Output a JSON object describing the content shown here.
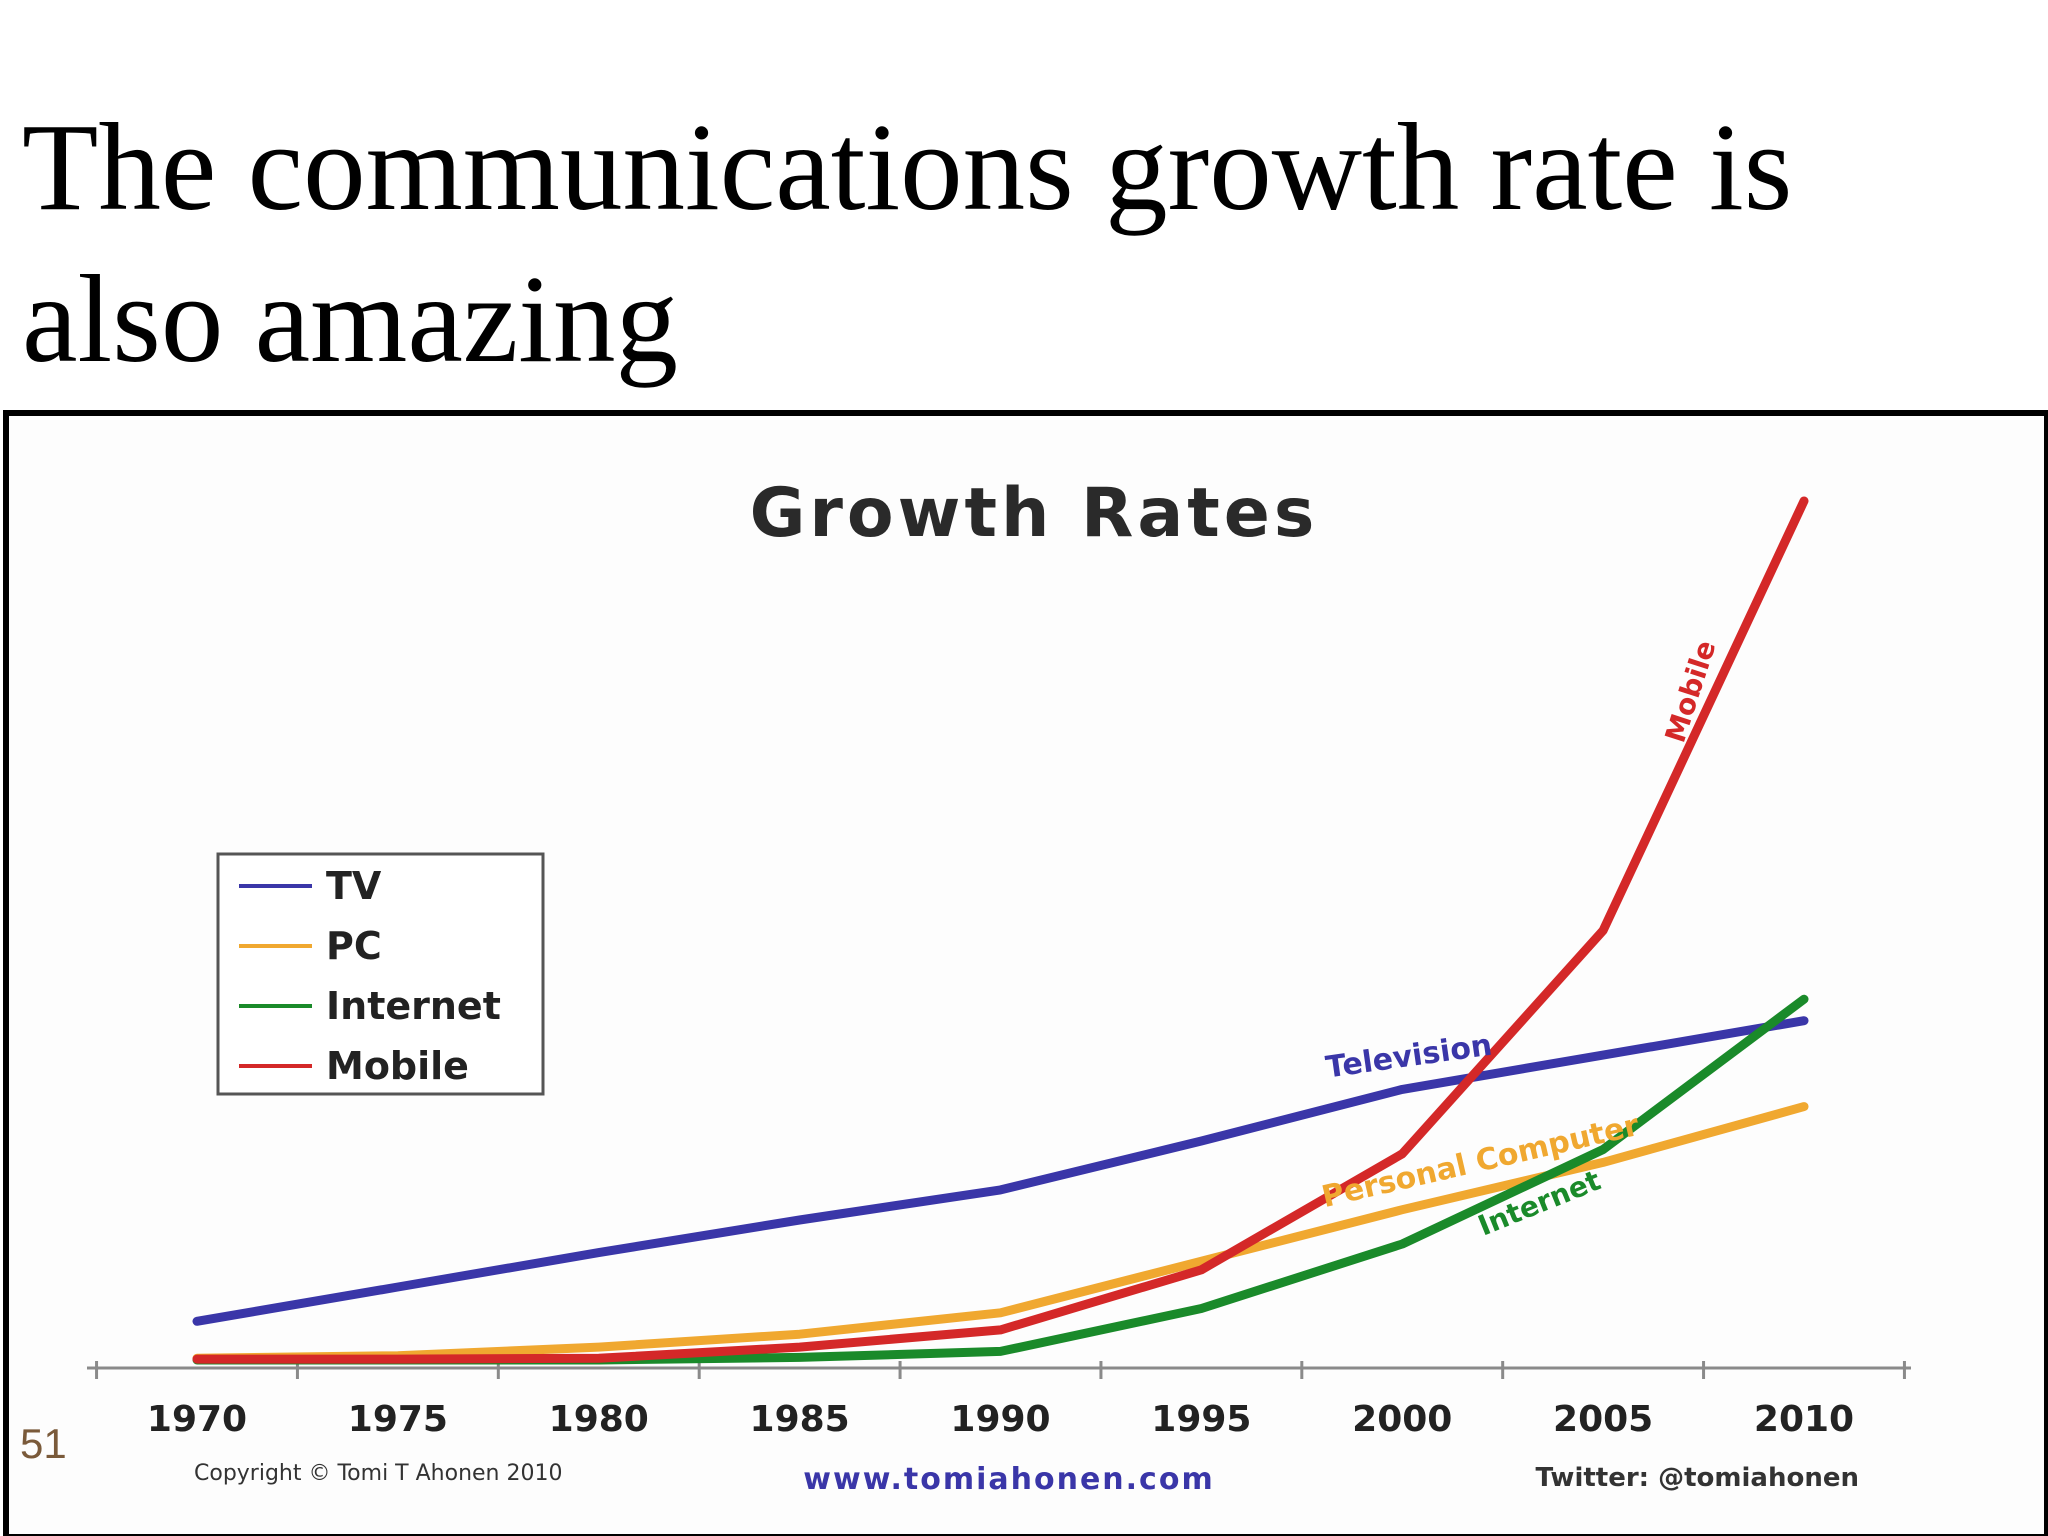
{
  "slide": {
    "title": "The communications growth rate is also amazing",
    "page_number": "51"
  },
  "chart_data": {
    "type": "line",
    "title": "Growth Rates",
    "xlabel": "",
    "ylabel": "",
    "x": [
      1970,
      1975,
      1980,
      1985,
      1990,
      1995,
      2000,
      2005,
      2010
    ],
    "xlim": [
      1970,
      2012
    ],
    "ylim": [
      0,
      100
    ],
    "grid": false,
    "legend_position": "left",
    "series": [
      {
        "name": "TV",
        "label": "Television",
        "color": "#3a36a8",
        "values": [
          4.5,
          8.5,
          12.5,
          16.3,
          19.8,
          25.5,
          31.5,
          35.5,
          39.5
        ]
      },
      {
        "name": "PC",
        "label": "Personal Computer",
        "color": "#f0a830",
        "values": [
          0.2,
          0.5,
          1.5,
          3.0,
          5.5,
          11.5,
          17.5,
          23.0,
          29.5
        ]
      },
      {
        "name": "Internet",
        "label": "Internet",
        "color": "#1a8a2a",
        "values": [
          0,
          0,
          0,
          0.3,
          1.0,
          6.0,
          13.5,
          24.5,
          42.0
        ]
      },
      {
        "name": "Mobile",
        "label": "Mobile",
        "color": "#d42828",
        "values": [
          0.1,
          0.1,
          0.2,
          1.5,
          3.5,
          10.5,
          24.0,
          50.0,
          100.0
        ]
      }
    ],
    "footer": {
      "copyright": "Copyright © Tomi T Ahonen 2010",
      "website": "www.tomiahonen.com",
      "twitter": "Twitter: @tomiahonen"
    }
  }
}
